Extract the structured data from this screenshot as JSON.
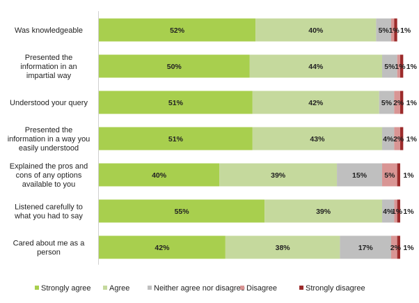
{
  "chart_data": {
    "type": "bar",
    "orientation": "horizontal",
    "stacked": true,
    "categories": [
      "Was knowledgeable",
      "Presented the information in an impartial way",
      "Understood your query",
      "Presented the information in a way you easily understood",
      "Explained the pros and cons of any options available to you",
      "Listened carefully to what you had to say",
      "Cared about me as a person"
    ],
    "category_lines": [
      [
        "Was knowledgeable"
      ],
      [
        "Presented the",
        "information in an",
        "impartial way"
      ],
      [
        "Understood your query"
      ],
      [
        "Presented the",
        "information in a way you",
        "easily understood"
      ],
      [
        "Explained the pros and",
        "cons of any options",
        "available to you"
      ],
      [
        "Listened carefully to",
        "what you had to say"
      ],
      [
        "Cared about me as a",
        "person"
      ]
    ],
    "series": [
      {
        "name": "Strongly agree",
        "color": "#A8CF4E",
        "values": [
          52,
          50,
          51,
          51,
          40,
          55,
          42
        ]
      },
      {
        "name": "Agree",
        "color": "#C5D99D",
        "values": [
          40,
          44,
          42,
          43,
          39,
          39,
          38
        ]
      },
      {
        "name": "Neither agree nor disagree",
        "color": "#BFBFBF",
        "values": [
          5,
          5,
          5,
          4,
          15,
          4,
          17
        ]
      },
      {
        "name": "Disagree",
        "color": "#D99594",
        "values": [
          1,
          1,
          2,
          2,
          5,
          1,
          2
        ]
      },
      {
        "name": "Strongly disagree",
        "color": "#9C2B2B",
        "values": [
          1,
          1,
          1,
          1,
          1,
          1,
          1
        ]
      }
    ],
    "value_suffix": "%",
    "xlim": [
      0,
      100
    ],
    "grid": false,
    "legend": "bottom"
  }
}
